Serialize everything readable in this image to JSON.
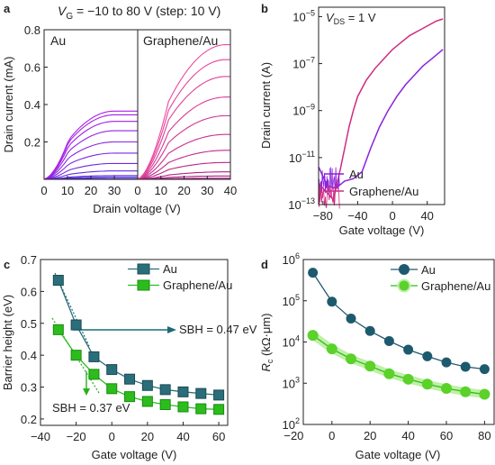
{
  "panel_labels": [
    "a",
    "b",
    "c",
    "d"
  ],
  "colors": {
    "au_curves": "#8a22dd",
    "graphene_curves": "#cf2a82",
    "c_au": "#2a6e7a",
    "c_graphene": "#2bbd1c",
    "c_sbh_au_text": "#1c6a78",
    "c_sbh_gr_text": "#27b01c",
    "d_au": "#1e5a6e",
    "d_graphene": "#5bd12a",
    "d_graphene_halo": "#bff0a6"
  },
  "chart_data": [
    {
      "panel": "a",
      "type": "line",
      "title": "VG = −10 to 80 V (step: 10 V)",
      "title_parts": {
        "v": "V",
        "sub": "G",
        "rest": " = −10 to 80 V (step: 10 V)"
      },
      "xlabel": "Drain voltage (V)",
      "ylabel": "Drain current (mA)",
      "ylim": [
        0,
        0.8
      ],
      "yticks": [
        "0.2",
        "0.4",
        "0.6",
        "0.8"
      ],
      "subplots": [
        {
          "label": "Au",
          "xlim": [
            0,
            40
          ],
          "xticks": [
            "0",
            "10",
            "20",
            "30"
          ],
          "saturation_currents_mA": [
            0.005,
            0.012,
            0.02,
            0.045,
            0.085,
            0.14,
            0.2,
            0.26,
            0.31,
            0.345,
            0.365
          ]
        },
        {
          "label": "Graphene/Au",
          "xlim": [
            0,
            40
          ],
          "xticks": [
            "0",
            "10",
            "20",
            "30",
            "40"
          ],
          "saturation_currents_mA": [
            0.006,
            0.018,
            0.04,
            0.09,
            0.155,
            0.24,
            0.34,
            0.44,
            0.55,
            0.64,
            0.72
          ]
        }
      ]
    },
    {
      "panel": "b",
      "type": "line",
      "annotation": {
        "v": "V",
        "sub": "DS",
        "rest": " = 1 V"
      },
      "xlabel": "Gate voltage (V)",
      "ylabel": "Drain current (A)",
      "scale": "log",
      "xlim": [
        -85,
        60
      ],
      "ylim_exp": [
        -13,
        -4.6
      ],
      "xticks": [
        "−80",
        "−40",
        "0",
        "40"
      ],
      "yticks_exp": [
        -13,
        -11,
        -9,
        -7,
        -5
      ],
      "series": [
        {
          "name": "Au",
          "x": [
            -85,
            -75,
            -65,
            -55,
            -45,
            -35,
            -25,
            -15,
            -5,
            5,
            15,
            25,
            35,
            45,
            58
          ],
          "log10y": [
            -11.4,
            -12.2,
            -12.3,
            -12.0,
            -11.9,
            -11.6,
            -10.6,
            -9.7,
            -9.0,
            -8.4,
            -7.9,
            -7.5,
            -7.1,
            -6.8,
            -6.4
          ]
        },
        {
          "name": "Graphene/Au",
          "x": [
            -85,
            -75,
            -68,
            -60,
            -55,
            -50,
            -45,
            -40,
            -30,
            -20,
            -10,
            0,
            10,
            20,
            30,
            40,
            50,
            58
          ],
          "log10y": [
            -12.1,
            -12.5,
            -12.8,
            -11.5,
            -10.6,
            -9.7,
            -9.0,
            -8.4,
            -7.7,
            -7.2,
            -6.8,
            -6.4,
            -6.1,
            -5.8,
            -5.6,
            -5.4,
            -5.2,
            -5.1
          ]
        }
      ]
    },
    {
      "panel": "c",
      "type": "line",
      "xlabel": "Gate voltage (V)",
      "ylabel": "Barrier height (eV)",
      "xlim": [
        -40,
        65
      ],
      "ylim": [
        0.18,
        0.7
      ],
      "xticks": [
        "−40",
        "−20",
        "0",
        "20",
        "40",
        "60"
      ],
      "yticks": [
        "0.2",
        "0.3",
        "0.4",
        "0.5",
        "0.6",
        "0.7"
      ],
      "series": [
        {
          "name": "Au",
          "x": [
            -30,
            -20,
            -10,
            0,
            10,
            20,
            30,
            40,
            50,
            60
          ],
          "y": [
            0.635,
            0.495,
            0.395,
            0.355,
            0.325,
            0.305,
            0.292,
            0.285,
            0.28,
            0.275
          ]
        },
        {
          "name": "Graphene/Au",
          "x": [
            -30,
            -20,
            -10,
            0,
            10,
            20,
            30,
            40,
            50,
            60
          ],
          "y": [
            0.48,
            0.4,
            0.34,
            0.295,
            0.27,
            0.255,
            0.245,
            0.238,
            0.232,
            0.23
          ]
        }
      ],
      "annotations": [
        "SBH = 0.47 eV",
        "SBH = 0.37 eV"
      ]
    },
    {
      "panel": "d",
      "type": "line",
      "scale": "log",
      "xlabel": "Gate voltage (V)",
      "ylabel": {
        "r": "R",
        "sub": "c",
        "rest": " (kΩ·μm)"
      },
      "xlim": [
        -15,
        85
      ],
      "ylim_exp": [
        2,
        6
      ],
      "xticks": [
        "−20",
        "0",
        "20",
        "40",
        "60",
        "80"
      ],
      "yticks_exp": [
        2,
        3,
        4,
        5,
        6
      ],
      "series": [
        {
          "name": "Au",
          "x": [
            -10,
            0,
            10,
            20,
            30,
            40,
            50,
            60,
            70,
            80
          ],
          "y": [
            480000,
            95000,
            37000,
            18500,
            10500,
            6500,
            4500,
            3200,
            2500,
            2200
          ]
        },
        {
          "name": "Graphene/Au",
          "x": [
            -10,
            0,
            10,
            20,
            30,
            40,
            50,
            60,
            70,
            80
          ],
          "y": [
            14500,
            6800,
            3900,
            2600,
            1700,
            1250,
            950,
            750,
            620,
            540
          ]
        }
      ]
    }
  ]
}
